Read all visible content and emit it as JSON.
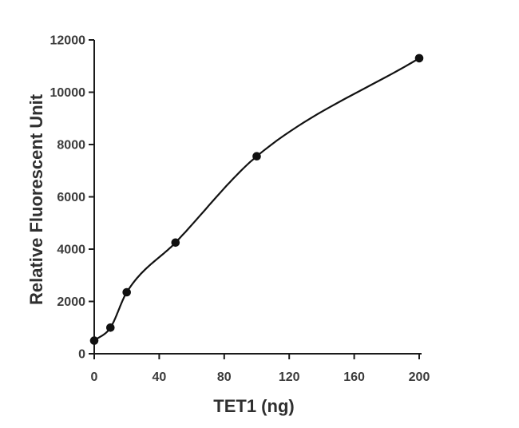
{
  "chart_data": {
    "type": "scatter",
    "title": "",
    "xlabel": "TET1 (ng)",
    "ylabel": "Relative Fluorescent Unit",
    "x": [
      0,
      10,
      20,
      50,
      100,
      200
    ],
    "y": [
      500,
      1000,
      2350,
      4250,
      7550,
      11300
    ],
    "x_ticks": [
      0,
      40,
      80,
      120,
      160,
      200
    ],
    "y_ticks": [
      0,
      2000,
      4000,
      6000,
      8000,
      10000,
      12000
    ],
    "xlim": [
      0,
      200
    ],
    "ylim": [
      0,
      12000
    ],
    "grid": false,
    "legend": "none",
    "line_style": "smooth fitted curve through all points",
    "marker_style": "filled circle",
    "colors": {
      "background": "#ffffff",
      "axis": "#1b1b1b",
      "curve": "#111111",
      "marker": "#111111",
      "tick_text": "#3b3b3b",
      "title_text": "#2f2f2f"
    }
  }
}
